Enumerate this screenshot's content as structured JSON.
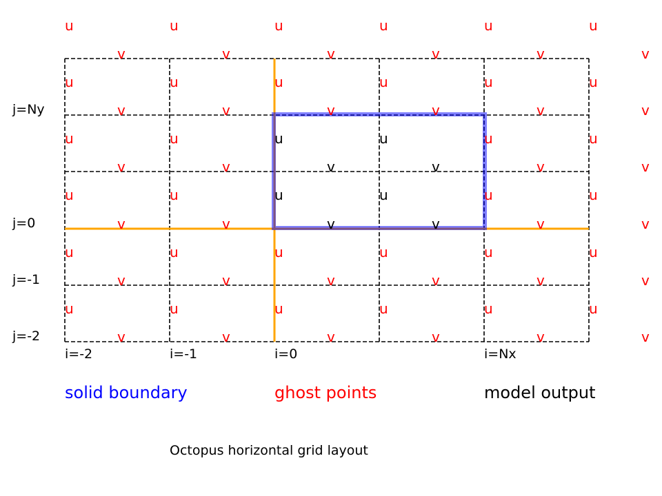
{
  "diagram": {
    "caption": "Octopus horizontal grid layout",
    "row_labels": [
      "j=Ny",
      "j=0",
      "j=-1",
      "j=-2"
    ],
    "col_labels": [
      "i=-2",
      "i=-1",
      "i=0",
      "i=Nx"
    ],
    "legend": {
      "solid": "solid boundary",
      "ghost": "ghost points",
      "model": "model output"
    },
    "point_u": "u",
    "point_v": "v",
    "colors": {
      "grid": "#000000",
      "boundary": "#ffa500",
      "domain_box": "#0000ff",
      "solid_text": "#0000ff",
      "ghost_text": "#ff0000",
      "model_text": "#000000"
    }
  }
}
